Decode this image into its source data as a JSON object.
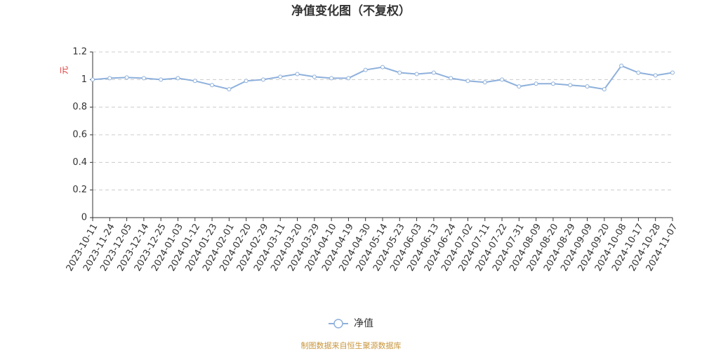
{
  "chart_data": {
    "type": "line",
    "title": "净值变化图（不复权）",
    "y_label": "元",
    "categories": [
      "2023-10-11",
      "2023-11-24",
      "2023-12-05",
      "2023-12-14",
      "2023-12-25",
      "2024-01-03",
      "2024-01-12",
      "2024-01-23",
      "2024-02-01",
      "2024-02-20",
      "2024-02-29",
      "2024-03-11",
      "2024-03-20",
      "2024-03-29",
      "2024-04-10",
      "2024-04-19",
      "2024-04-30",
      "2024-05-14",
      "2024-05-23",
      "2024-06-03",
      "2024-06-13",
      "2024-06-24",
      "2024-07-02",
      "2024-07-11",
      "2024-07-22",
      "2024-07-31",
      "2024-08-09",
      "2024-08-20",
      "2024-08-29",
      "2024-09-09",
      "2024-09-20",
      "2024-10-08",
      "2024-10-17",
      "2024-10-28",
      "2024-11-07"
    ],
    "series": [
      {
        "name": "净值",
        "color": "#8eb0db",
        "values": [
          1.0,
          1.01,
          1.015,
          1.01,
          1.0,
          1.01,
          0.99,
          0.96,
          0.93,
          0.99,
          1.0,
          1.02,
          1.04,
          1.02,
          1.01,
          1.01,
          1.07,
          1.09,
          1.05,
          1.04,
          1.05,
          1.01,
          0.99,
          0.98,
          1.0,
          0.95,
          0.97,
          0.97,
          0.96,
          0.95,
          0.93,
          1.1,
          1.05,
          1.03,
          1.05
        ]
      }
    ],
    "ylim": [
      0,
      1.2
    ],
    "yticks": [
      0,
      0.2,
      0.4,
      0.6,
      0.8,
      1,
      1.2
    ],
    "grid": true,
    "legend": "bottom",
    "source": "制图数据来自恒生聚源数据库"
  }
}
